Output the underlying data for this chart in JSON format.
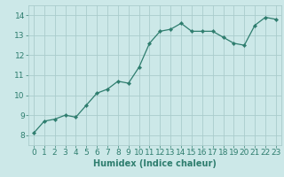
{
  "x": [
    0,
    1,
    2,
    3,
    4,
    5,
    6,
    7,
    8,
    9,
    10,
    11,
    12,
    13,
    14,
    15,
    16,
    17,
    18,
    19,
    20,
    21,
    22,
    23
  ],
  "y": [
    8.1,
    8.7,
    8.8,
    9.0,
    8.9,
    9.5,
    10.1,
    10.3,
    10.7,
    10.6,
    11.4,
    12.6,
    13.2,
    13.3,
    13.6,
    13.2,
    13.2,
    13.2,
    12.9,
    12.6,
    12.5,
    13.5,
    13.9,
    13.8
  ],
  "xlabel": "Humidex (Indice chaleur)",
  "xlim": [
    -0.5,
    23.5
  ],
  "ylim": [
    7.5,
    14.5
  ],
  "yticks": [
    8,
    9,
    10,
    11,
    12,
    13,
    14
  ],
  "xticks": [
    0,
    1,
    2,
    3,
    4,
    5,
    6,
    7,
    8,
    9,
    10,
    11,
    12,
    13,
    14,
    15,
    16,
    17,
    18,
    19,
    20,
    21,
    22,
    23
  ],
  "line_color": "#2e7d6e",
  "marker_color": "#2e7d6e",
  "bg_color": "#cce8e8",
  "grid_color": "#aacccc",
  "label_color": "#2e7d6e",
  "tick_color": "#2e7d6e",
  "font_size_labels": 7,
  "font_size_ticks": 6.5
}
